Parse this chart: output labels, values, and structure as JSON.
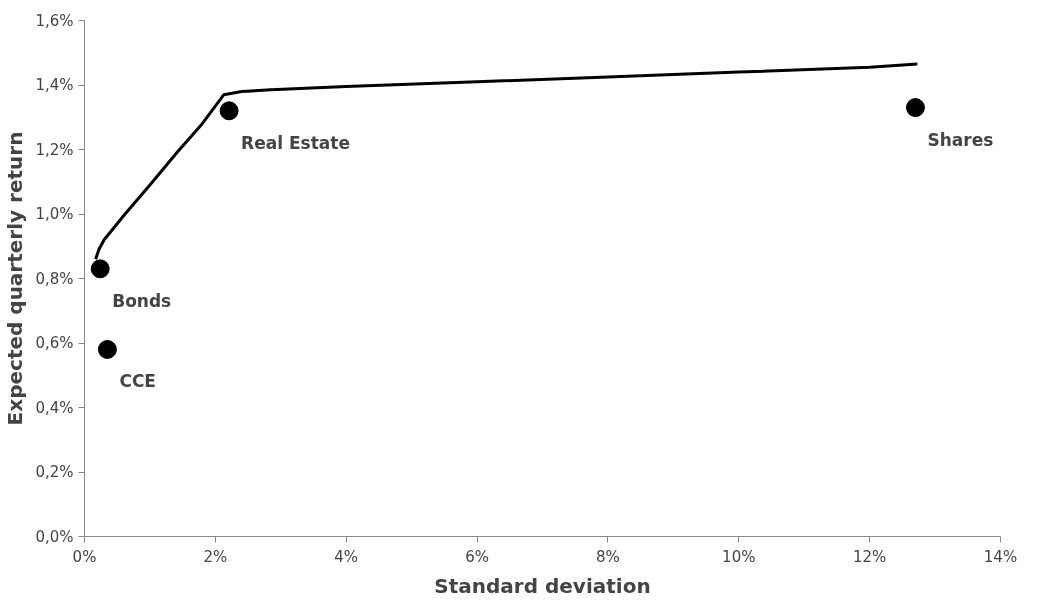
{
  "chart_data": {
    "type": "scatter",
    "xlabel": "Standard deviation",
    "ylabel": "Expected quarterly return",
    "xlim": [
      0,
      14
    ],
    "ylim": [
      0,
      1.6
    ],
    "xticks": [
      {
        "value": 0,
        "label": "0%"
      },
      {
        "value": 2,
        "label": "2%"
      },
      {
        "value": 4,
        "label": "4%"
      },
      {
        "value": 6,
        "label": "6%"
      },
      {
        "value": 8,
        "label": "8%"
      },
      {
        "value": 10,
        "label": "10%"
      },
      {
        "value": 12,
        "label": "12%"
      },
      {
        "value": 14,
        "label": "14%"
      }
    ],
    "yticks": [
      {
        "value": 0,
        "label": "0,0%"
      },
      {
        "value": 0.2,
        "label": "0,2%"
      },
      {
        "value": 0.4,
        "label": "0,4%"
      },
      {
        "value": 0.6,
        "label": "0,6%"
      },
      {
        "value": 0.8,
        "label": "0,8%"
      },
      {
        "value": 1.0,
        "label": "1,0%"
      },
      {
        "value": 1.2,
        "label": "1,2%"
      },
      {
        "value": 1.4,
        "label": "1,4%"
      },
      {
        "value": 1.6,
        "label": "1,6%"
      }
    ],
    "grid": false,
    "series": [
      {
        "type": "line",
        "color": "#000000",
        "line_style": "solid",
        "x": [
          0.17,
          0.22,
          0.3,
          0.62,
          1.0,
          1.41,
          1.8,
          2.13,
          2.4,
          2.85,
          4,
          6,
          8,
          10,
          12,
          12.73
        ],
        "values": [
          0.86,
          0.89,
          0.92,
          1.0,
          1.09,
          1.19,
          1.28,
          1.37,
          1.38,
          1.385,
          1.395,
          1.41,
          1.425,
          1.44,
          1.455,
          1.465
        ]
      },
      {
        "color": "#000000",
        "marker": "circle",
        "x": [
          0.24,
          0.35,
          2.21,
          12.7
        ],
        "values": [
          0.83,
          0.58,
          1.32,
          1.33
        ]
      }
    ],
    "annotations": [
      {
        "text": "Bonds",
        "x": 0.24,
        "y": 0.83
      },
      {
        "text": "CCE",
        "x": 0.35,
        "y": 0.58
      },
      {
        "text": "Real Estate",
        "x": 2.21,
        "y": 1.32
      },
      {
        "text": "Shares",
        "x": 12.7,
        "y": 1.33
      }
    ]
  }
}
